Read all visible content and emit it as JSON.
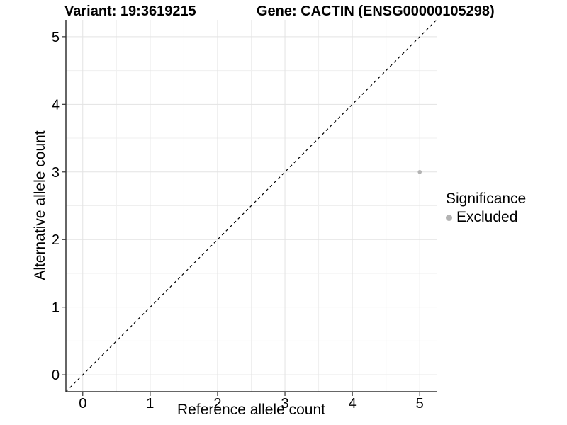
{
  "colors": {
    "background": "#ffffff",
    "grid_major": "#e3e3e3",
    "grid_minor": "#efefef",
    "axis_line": "#333333",
    "text": "#000000",
    "point": "#b3b3b3",
    "reference_line": "#000000"
  },
  "chart_data": {
    "type": "scatter",
    "titles": [
      "Variant: 19:3619215",
      "Gene: CACTIN (ENSG00000105298)"
    ],
    "xlabel": "Reference allele count",
    "ylabel": "Alternative allele count",
    "xlim": [
      -0.25,
      5.25
    ],
    "ylim": [
      -0.25,
      5.25
    ],
    "xticks": [
      0,
      1,
      2,
      3,
      4,
      5
    ],
    "yticks": [
      0,
      1,
      2,
      3,
      4,
      5
    ],
    "grid": {
      "major": true,
      "minor": true
    },
    "series": [
      {
        "name": "Excluded",
        "color": "#b3b3b3",
        "points": [
          {
            "x": 5,
            "y": 3
          }
        ]
      }
    ],
    "reference_line": {
      "kind": "identity",
      "linestyle": "dashed",
      "color": "#000000",
      "from": [
        -0.25,
        -0.25
      ],
      "to": [
        5.25,
        5.25
      ]
    },
    "legend": {
      "title": "Significance",
      "position": "right",
      "entries": [
        "Excluded"
      ]
    }
  }
}
